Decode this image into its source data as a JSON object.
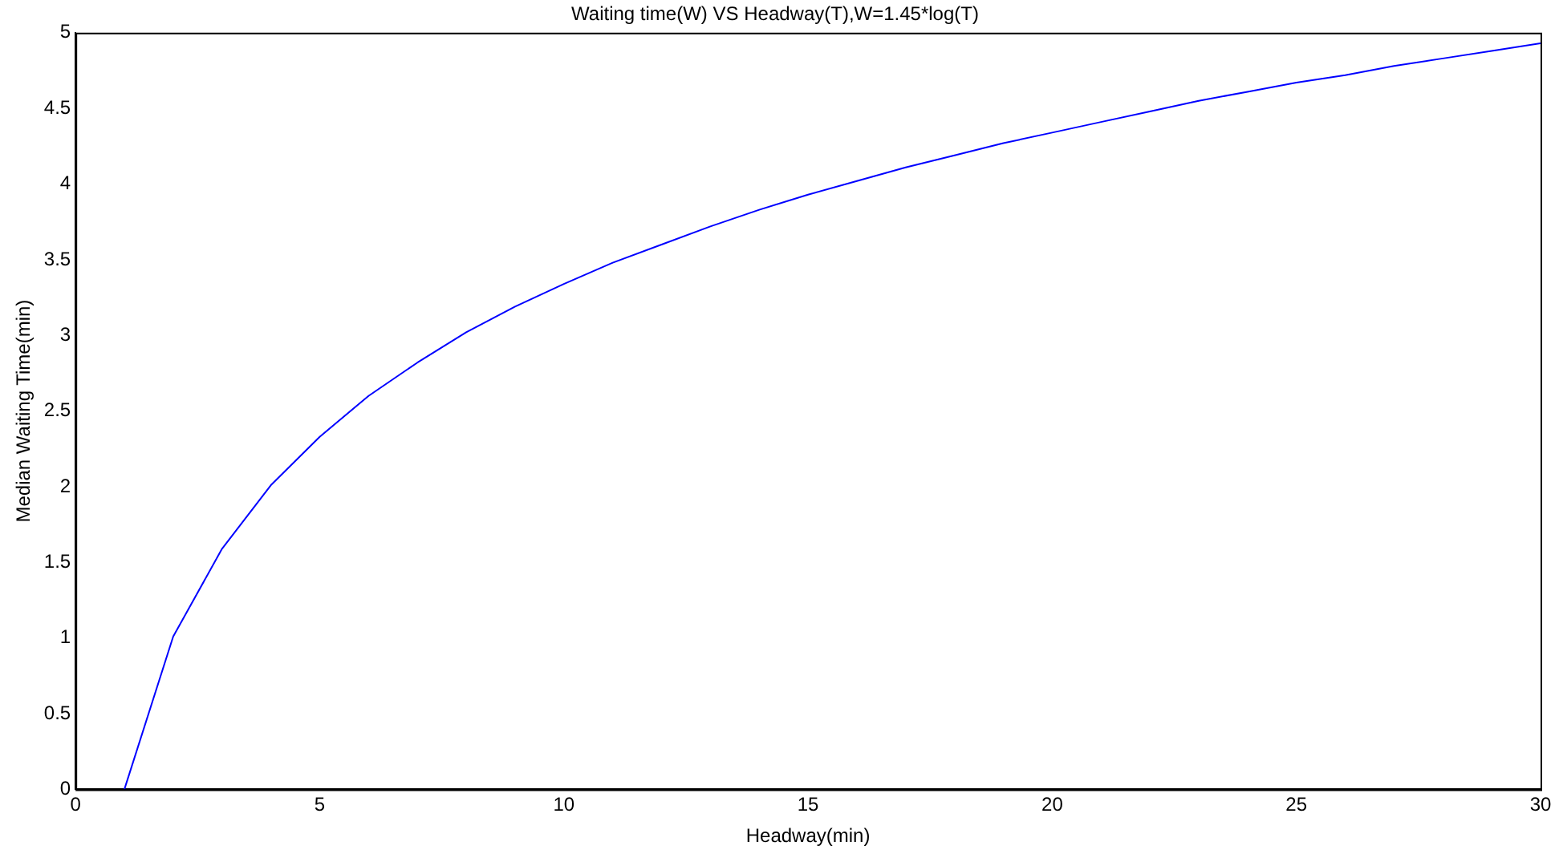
{
  "chart_data": {
    "type": "line",
    "title": "Waiting time(W) VS Headway(T),W=1.45*log(T)",
    "xlabel": "Headway(min)",
    "ylabel": "Median Waiting Time(min)",
    "x": [
      1,
      2,
      3,
      4,
      5,
      6,
      7,
      8,
      9,
      10,
      11,
      12,
      13,
      14,
      15,
      16,
      17,
      18,
      19,
      20,
      21,
      22,
      23,
      24,
      25,
      26,
      27,
      28,
      29,
      30
    ],
    "series": [
      {
        "color": "#0000ff",
        "values": [
          0,
          1.01,
          1.59,
          2.01,
          2.33,
          2.6,
          2.82,
          3.02,
          3.19,
          3.34,
          3.48,
          3.6,
          3.72,
          3.83,
          3.93,
          4.02,
          4.11,
          4.19,
          4.27,
          4.34,
          4.41,
          4.48,
          4.55,
          4.61,
          4.67,
          4.72,
          4.78,
          4.83,
          4.88,
          4.93
        ]
      }
    ],
    "xlim": [
      0,
      30
    ],
    "xticks": [
      0,
      5,
      10,
      15,
      20,
      25,
      30
    ],
    "ylim": [
      0,
      5
    ],
    "yticks": [
      0,
      0.5,
      1,
      1.5,
      2,
      2.5,
      3,
      3.5,
      4,
      4.5,
      5
    ],
    "grid": false,
    "legend": false,
    "marker": "none",
    "line_style": "solid"
  }
}
